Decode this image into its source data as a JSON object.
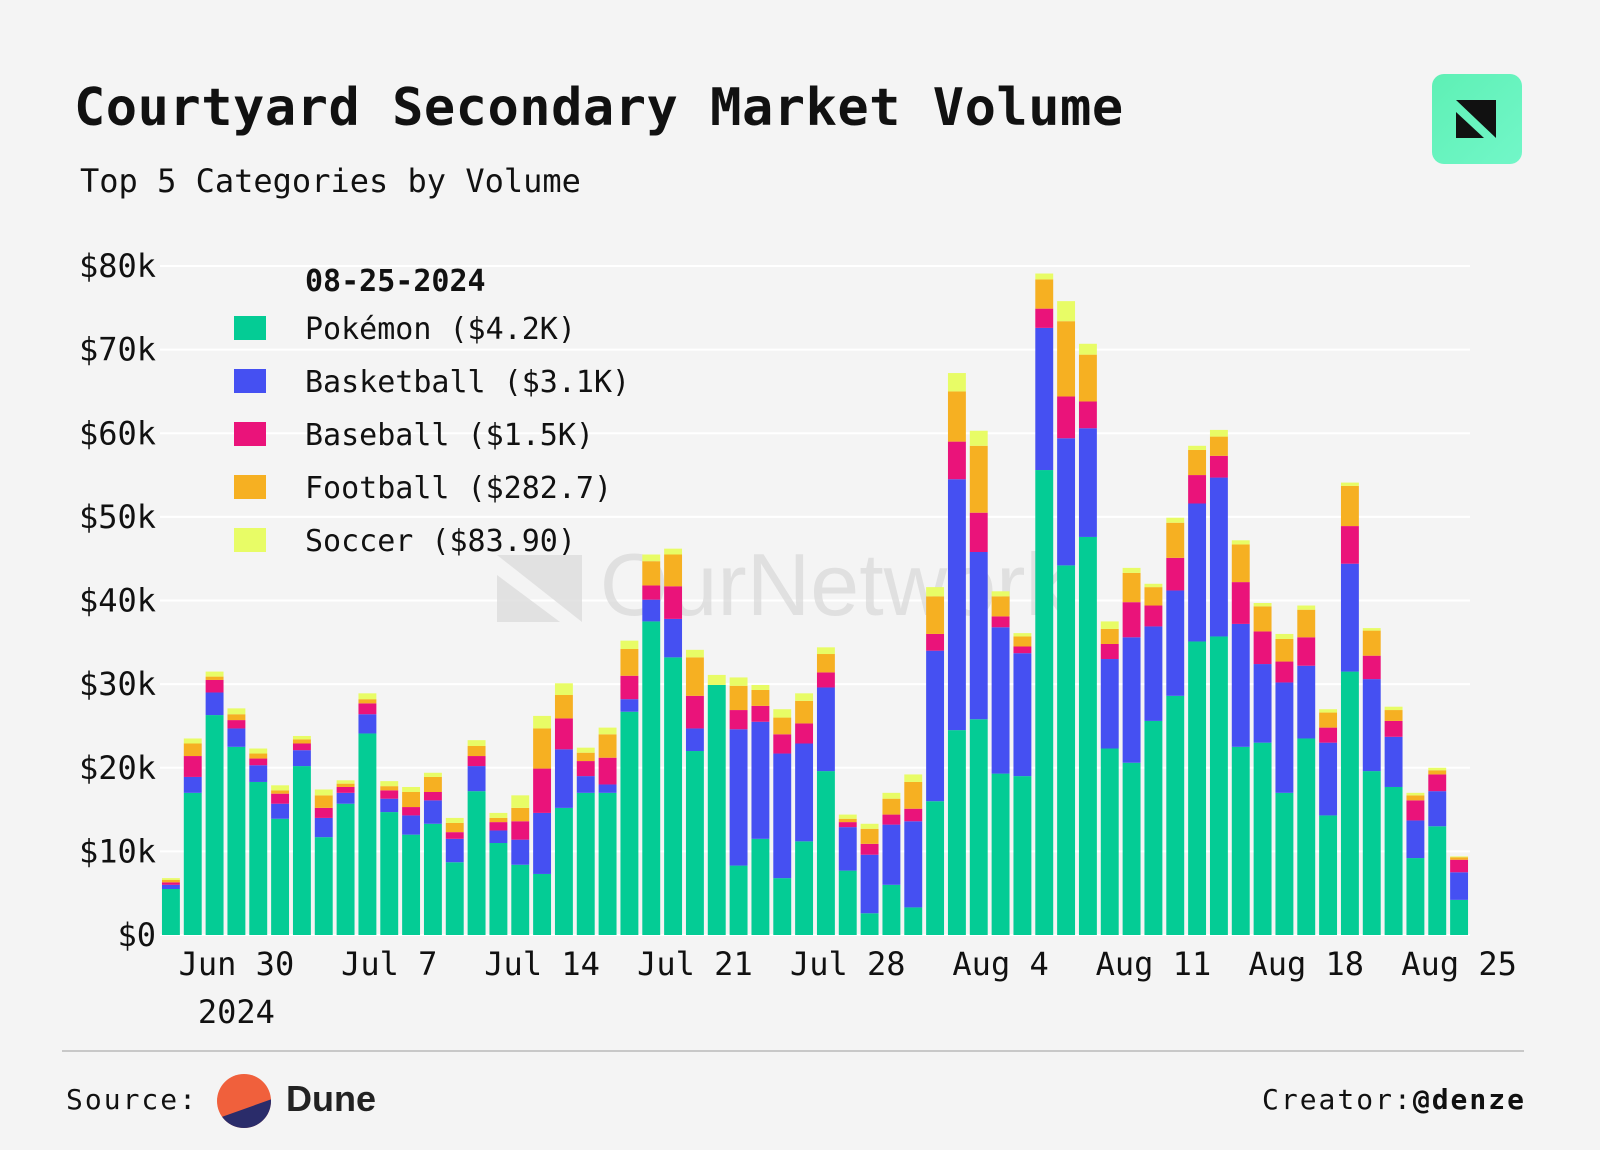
{
  "header": {
    "title": "Courtyard Secondary Market Volume",
    "subtitle": "Top 5 Categories by Volume",
    "logo_icon": "ournetwork-logo-icon"
  },
  "watermark": "OurNetwork",
  "footer": {
    "source_label": "Source:",
    "source_name": "Dune",
    "creator_label": "Creator:",
    "creator_handle": "@denze"
  },
  "chart_data": {
    "type": "bar",
    "stacked": true,
    "title": "Courtyard Secondary Market Volume",
    "subtitle": "Top 5 Categories by Volume",
    "xlabel": "",
    "ylabel": "",
    "ylim": [
      0,
      80000
    ],
    "grid": true,
    "y_ticks": [
      0,
      10000,
      20000,
      30000,
      40000,
      50000,
      60000,
      70000,
      80000
    ],
    "y_tick_labels": [
      "$0",
      "$10k",
      "$20k",
      "$30k",
      "$40k",
      "$50k",
      "$60k",
      "$70k",
      "$80k"
    ],
    "x_tick_labels": [
      {
        "index": 3,
        "label": "Jun 30",
        "sub": "2024"
      },
      {
        "index": 10,
        "label": "Jul 7"
      },
      {
        "index": 17,
        "label": "Jul 14"
      },
      {
        "index": 24,
        "label": "Jul 21"
      },
      {
        "index": 31,
        "label": "Jul 28"
      },
      {
        "index": 38,
        "label": "Aug 4"
      },
      {
        "index": 45,
        "label": "Aug 11"
      },
      {
        "index": 52,
        "label": "Aug 18"
      },
      {
        "index": 59,
        "label": "Aug 25"
      }
    ],
    "legend": {
      "placement": "top-left",
      "date": "08-25-2024",
      "entries": [
        {
          "name": "Pokémon",
          "value_label": "($4.2K)"
        },
        {
          "name": "Basketball",
          "value_label": "($3.1K)"
        },
        {
          "name": "Baseball",
          "value_label": "($1.5K)"
        },
        {
          "name": "Football",
          "value_label": "($282.7)"
        },
        {
          "name": "Soccer",
          "value_label": "($83.90)"
        }
      ]
    },
    "colors": [
      "#04cc95",
      "#4550f2",
      "#ea137a",
      "#f6b022",
      "#e8fc66"
    ],
    "categories": [
      "Jun 27",
      "Jun 28",
      "Jun 29",
      "Jun 30",
      "Jul 1",
      "Jul 2",
      "Jul 3",
      "Jul 4",
      "Jul 5",
      "Jul 6",
      "Jul 7",
      "Jul 8",
      "Jul 9",
      "Jul 10",
      "Jul 11",
      "Jul 12",
      "Jul 13",
      "Jul 14",
      "Jul 15",
      "Jul 16",
      "Jul 17",
      "Jul 18",
      "Jul 19",
      "Jul 20",
      "Jul 21",
      "Jul 22",
      "Jul 23",
      "Jul 24",
      "Jul 25",
      "Jul 26",
      "Jul 27",
      "Jul 28",
      "Jul 29",
      "Jul 30",
      "Jul 31",
      "Aug 1",
      "Aug 2",
      "Aug 3",
      "Aug 4",
      "Aug 5",
      "Aug 6",
      "Aug 7",
      "Aug 8",
      "Aug 9",
      "Aug 10",
      "Aug 11",
      "Aug 12",
      "Aug 13",
      "Aug 14",
      "Aug 15",
      "Aug 16",
      "Aug 17",
      "Aug 18",
      "Aug 19",
      "Aug 20",
      "Aug 21",
      "Aug 22",
      "Aug 23",
      "Aug 24",
      "Aug 25"
    ],
    "series": [
      {
        "name": "Pokémon",
        "values": [
          5500,
          17000,
          26300,
          22500,
          18300,
          13900,
          20200,
          11700,
          15700,
          24100,
          14700,
          12000,
          13300,
          8700,
          17200,
          11000,
          8400,
          7300,
          15200,
          17000,
          17000,
          26700,
          37500,
          33200,
          22000,
          29900,
          8300,
          11500,
          6800,
          11200,
          19600,
          7700,
          2600,
          6000,
          3300,
          16000,
          24500,
          25800,
          19300,
          19000,
          55600,
          44200,
          47600,
          22300,
          20600,
          25600,
          28600,
          35100,
          35700,
          22500,
          23000,
          17000,
          23500,
          14300,
          31500,
          19600,
          17700,
          9200,
          13000,
          4200
        ]
      },
      {
        "name": "Basketball",
        "values": [
          500,
          1900,
          2700,
          2200,
          2000,
          1800,
          1900,
          2300,
          1300,
          2300,
          1600,
          2300,
          2800,
          2800,
          3000,
          1500,
          3000,
          7300,
          7000,
          2000,
          1000,
          1500,
          2600,
          4600,
          2700,
          0,
          16300,
          14000,
          14900,
          11700,
          10000,
          5200,
          7000,
          7200,
          10300,
          18000,
          30000,
          20000,
          17500,
          14700,
          17000,
          15200,
          13000,
          10700,
          15000,
          11300,
          12600,
          16500,
          19000,
          14700,
          9400,
          13200,
          8700,
          8700,
          12900,
          11000,
          6000,
          4500,
          4200,
          3300
        ]
      },
      {
        "name": "Baseball",
        "values": [
          300,
          2500,
          1500,
          1000,
          800,
          1200,
          800,
          1200,
          700,
          1300,
          1000,
          1000,
          1000,
          800,
          1200,
          1000,
          2200,
          5300,
          3700,
          1800,
          3200,
          2800,
          1700,
          3900,
          3900,
          0,
          2300,
          1900,
          2300,
          2400,
          1800,
          600,
          1300,
          1200,
          1500,
          2000,
          4500,
          4700,
          1300,
          800,
          2300,
          5000,
          3200,
          1800,
          4200,
          2500,
          3900,
          3400,
          2600,
          5000,
          3900,
          2500,
          3400,
          1800,
          4500,
          2800,
          1900,
          2400,
          2000,
          1500
        ]
      },
      {
        "name": "Football",
        "values": [
          300,
          1500,
          400,
          700,
          600,
          400,
          500,
          1500,
          400,
          500,
          500,
          1800,
          1800,
          1100,
          1200,
          500,
          1600,
          4800,
          2800,
          1000,
          2800,
          3200,
          2900,
          3800,
          4600,
          0,
          2900,
          1900,
          2000,
          2700,
          2200,
          400,
          1800,
          1900,
          3200,
          4500,
          6000,
          8000,
          2400,
          1200,
          3500,
          9000,
          5600,
          1800,
          3500,
          2200,
          4200,
          3000,
          2300,
          4500,
          3000,
          2700,
          3300,
          1800,
          4800,
          3000,
          1300,
          600,
          500,
          300
        ]
      },
      {
        "name": "Soccer",
        "values": [
          200,
          600,
          600,
          700,
          600,
          600,
          400,
          700,
          400,
          700,
          600,
          600,
          500,
          600,
          700,
          600,
          1500,
          1500,
          1400,
          600,
          800,
          1000,
          800,
          700,
          900,
          1200,
          1000,
          600,
          1000,
          900,
          800,
          500,
          600,
          700,
          900,
          1100,
          2200,
          1800,
          600,
          400,
          700,
          2400,
          1300,
          900,
          600,
          400,
          600,
          500,
          800,
          500,
          400,
          600,
          500,
          400,
          400,
          300,
          400,
          300,
          300,
          100
        ]
      }
    ]
  }
}
